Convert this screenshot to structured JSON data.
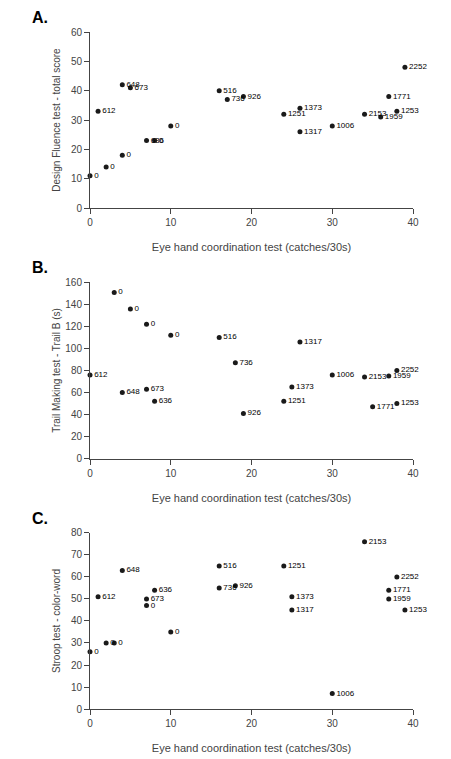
{
  "chart_data": [
    {
      "type": "scatter",
      "title": "A.",
      "xlabel": "Eye hand coordination test (catches/30s)",
      "ylabel": "Design Fluence test - total score",
      "xlim": [
        0,
        40
      ],
      "ylim": [
        0,
        60
      ],
      "xticks": [
        0,
        10,
        20,
        30,
        40
      ],
      "yticks": [
        0,
        10,
        20,
        30,
        40,
        50,
        60
      ],
      "grid": false,
      "color": "#1a1a1a",
      "x": [
        0,
        2,
        4,
        1,
        4,
        5,
        7,
        8,
        10,
        16,
        17,
        19,
        24,
        26,
        26,
        30,
        34,
        36,
        37,
        38,
        39
      ],
      "values": [
        11,
        14,
        18,
        33,
        42,
        41,
        23,
        23,
        28,
        40,
        37,
        38,
        32,
        34,
        26,
        28,
        32,
        31,
        38,
        33,
        48
      ],
      "labels": [
        "0",
        "0",
        "0",
        "612",
        "648",
        "673",
        "636",
        "0",
        "0",
        "516",
        "736",
        "926",
        "1251",
        "1373",
        "1317",
        "1006",
        "2153",
        "1959",
        "1771",
        "1253",
        "2252"
      ]
    },
    {
      "type": "scatter",
      "title": "B.",
      "xlabel": "Eye hand coordination test (catches/30s)",
      "ylabel": "Trail Making test - Trail B (s)",
      "xlim": [
        0,
        40
      ],
      "ylim": [
        0,
        160
      ],
      "xticks": [
        0,
        10,
        20,
        30,
        40
      ],
      "yticks": [
        0,
        20,
        40,
        60,
        80,
        100,
        120,
        140,
        160
      ],
      "grid": false,
      "color": "#1a1a1a",
      "x": [
        0,
        3,
        5,
        4,
        7,
        7,
        8,
        10,
        16,
        18,
        19,
        24,
        25,
        26,
        30,
        34,
        35,
        37,
        38,
        38
      ],
      "values": [
        76,
        151,
        136,
        60,
        63,
        122,
        52,
        112,
        110,
        87,
        41,
        52,
        65,
        106,
        76,
        74,
        47,
        75,
        50,
        80
      ],
      "labels": [
        "612",
        "0",
        "0",
        "648",
        "673",
        "0",
        "636",
        "0",
        "516",
        "736",
        "926",
        "1251",
        "1373",
        "1317",
        "1006",
        "2153",
        "1771",
        "1959",
        "1253",
        "2252"
      ]
    },
    {
      "type": "scatter",
      "title": "C.",
      "xlabel": "Eye hand coordination test (catches/30s)",
      "ylabel": "Stroop test - color-word",
      "xlim": [
        0,
        40
      ],
      "ylim": [
        0,
        80
      ],
      "xticks": [
        0,
        10,
        20,
        30,
        40
      ],
      "yticks": [
        0,
        10,
        20,
        30,
        40,
        50,
        60,
        70,
        80
      ],
      "grid": false,
      "color": "#1a1a1a",
      "x": [
        0,
        1,
        2,
        3,
        4,
        7,
        7,
        8,
        10,
        16,
        16,
        18,
        24,
        25,
        25,
        30,
        34,
        37,
        37,
        38,
        39
      ],
      "values": [
        26,
        51,
        30,
        30,
        63,
        47,
        50,
        54,
        35,
        55,
        65,
        56,
        65,
        51,
        45,
        7,
        76,
        54,
        50,
        60,
        45
      ],
      "labels": [
        "0",
        "612",
        "0",
        "0",
        "648",
        "0",
        "673",
        "636",
        "0",
        "736",
        "516",
        "926",
        "1251",
        "1373",
        "1317",
        "1006",
        "2153",
        "1771",
        "1959",
        "2252",
        "1253"
      ]
    }
  ]
}
